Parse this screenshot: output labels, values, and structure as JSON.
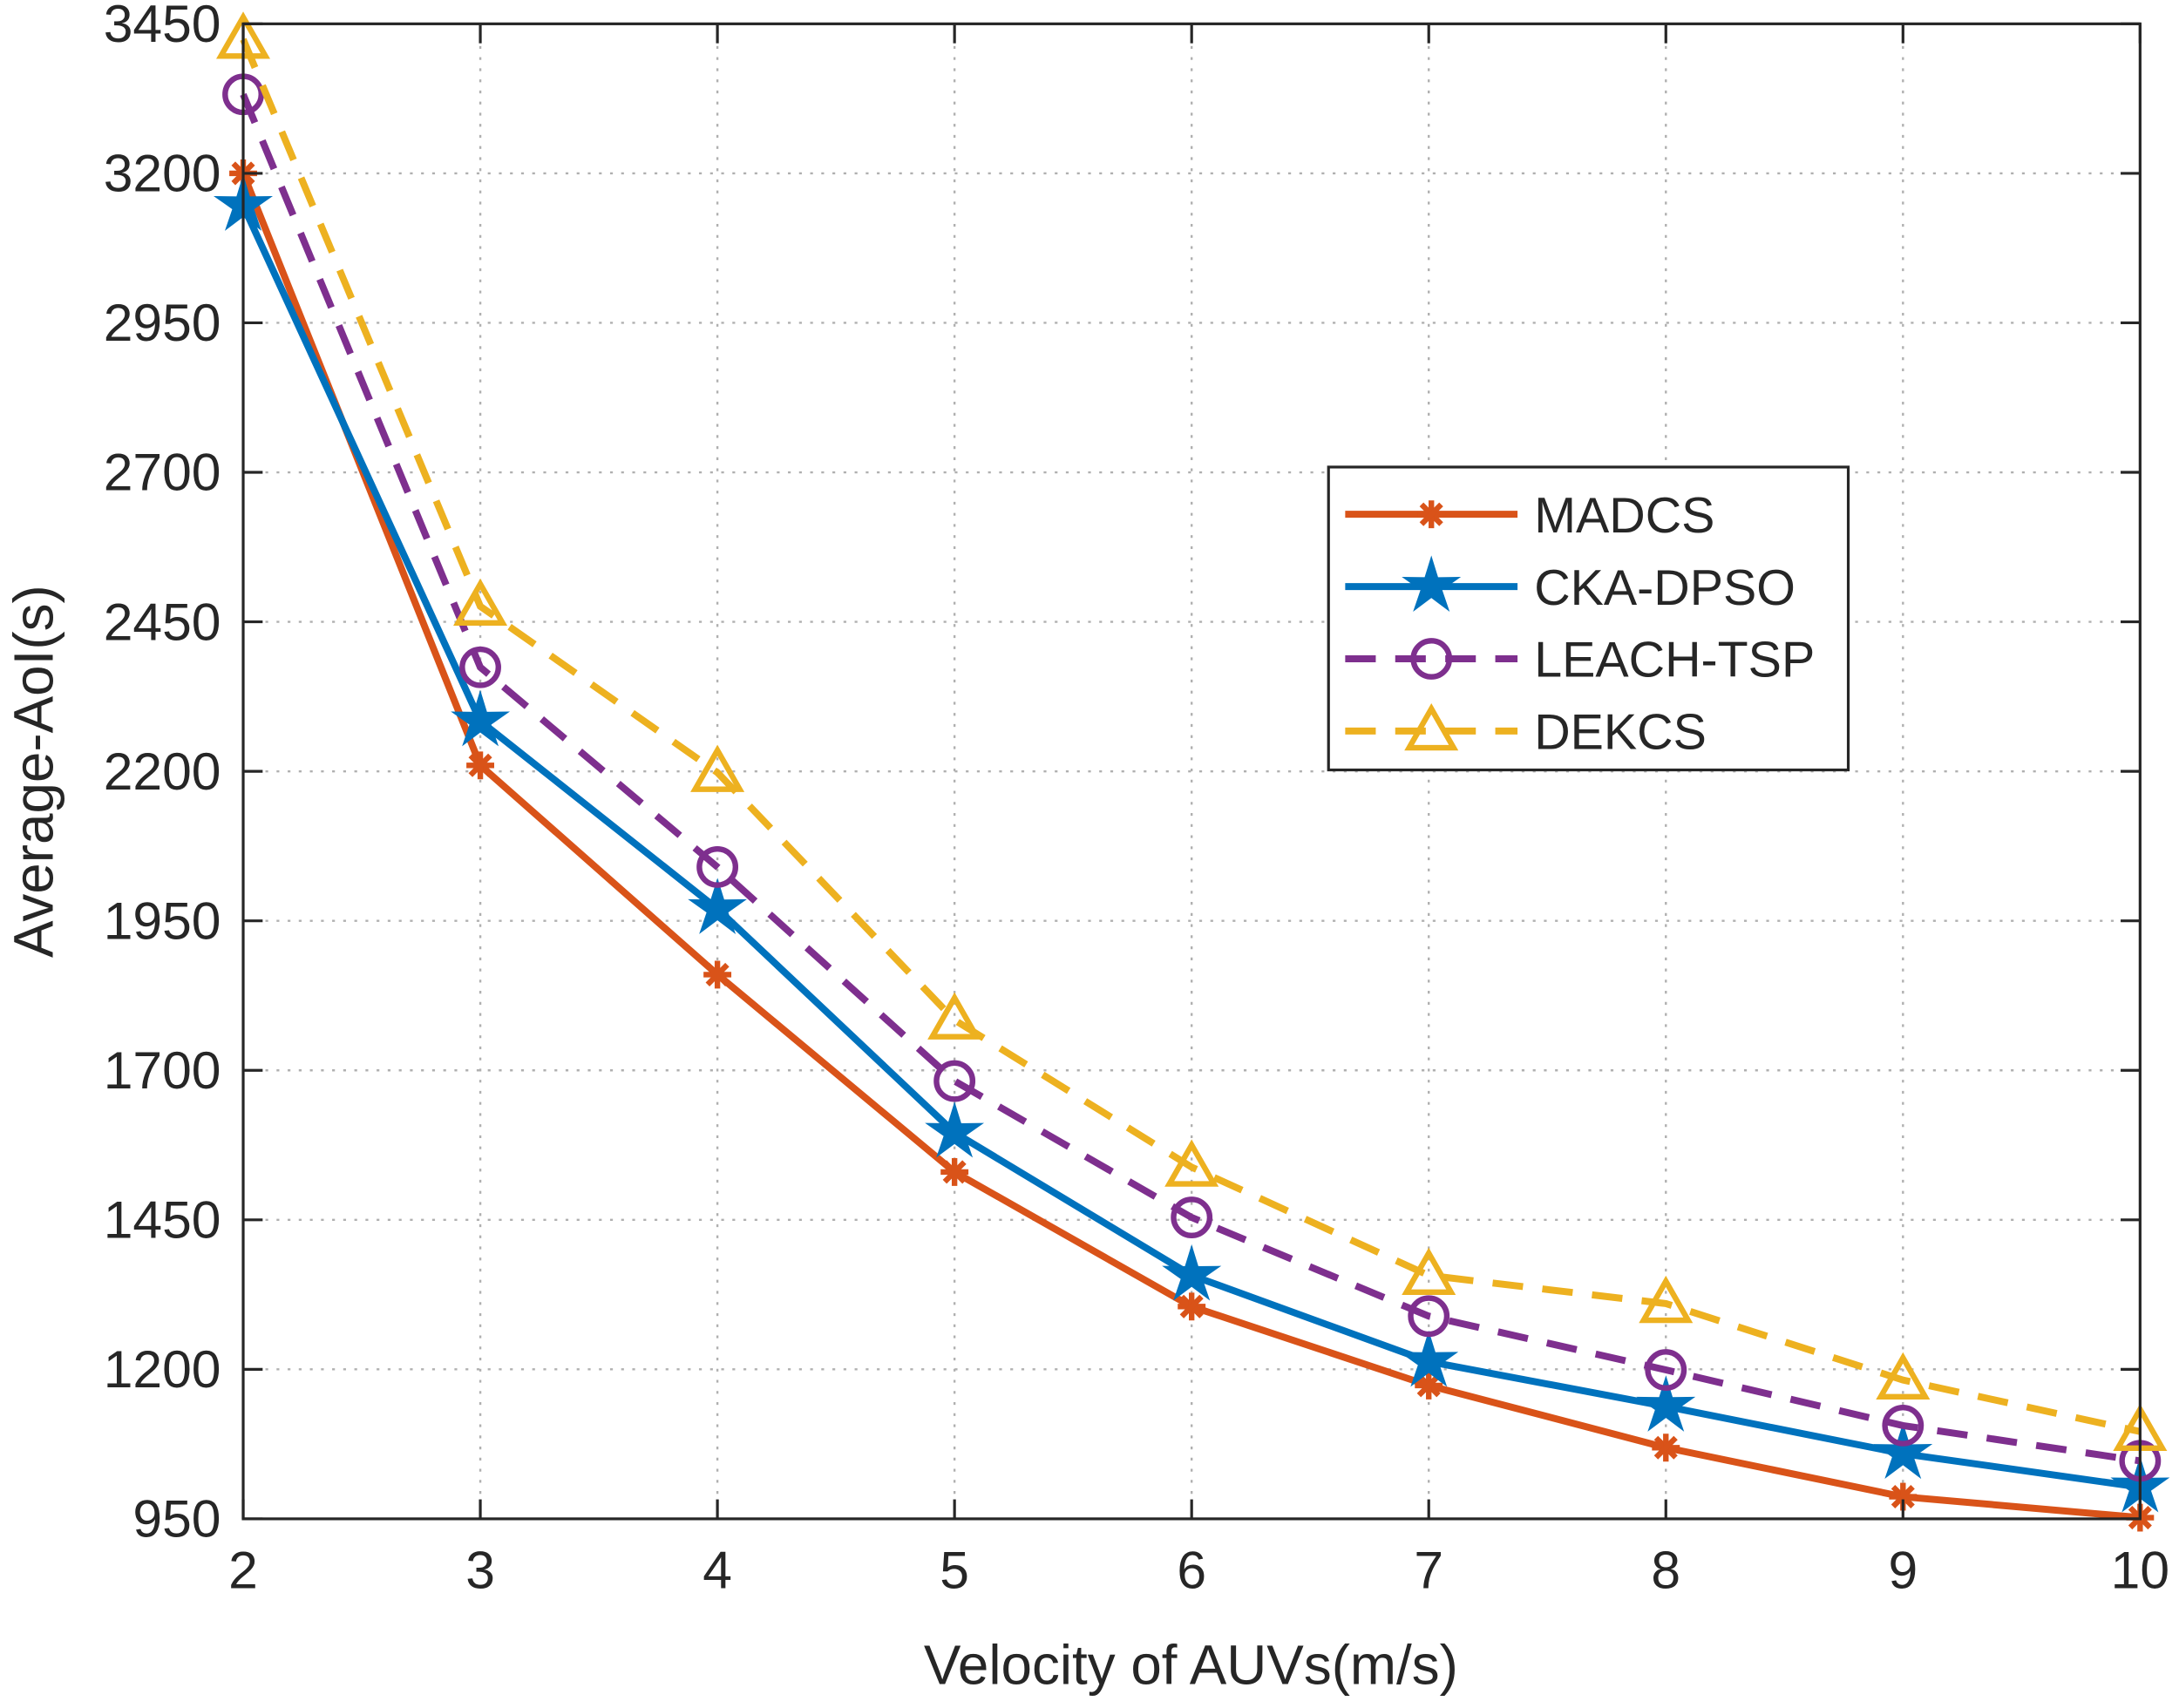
{
  "chart_data": {
    "type": "line",
    "title": "",
    "xlabel": "Velocity of AUVs(m/s)",
    "ylabel": "Average-AoI(s)",
    "xlim": [
      2,
      10
    ],
    "ylim": [
      950,
      3450
    ],
    "x": [
      2,
      3,
      4,
      5,
      6,
      7,
      8,
      9,
      10
    ],
    "xticks": [
      "2",
      "3",
      "4",
      "5",
      "6",
      "7",
      "8",
      "9",
      "10"
    ],
    "yticks": [
      "950",
      "1200",
      "1450",
      "1700",
      "1950",
      "2200",
      "2450",
      "2700",
      "2950",
      "3200",
      "3450"
    ],
    "grid": true,
    "legend_position": "center-right",
    "series": [
      {
        "name": "MADCS",
        "color": "#D95319",
        "dash": "solid",
        "marker": "asterisk",
        "values": [
          3200,
          2210,
          1860,
          1530,
          1305,
          1173,
          1069,
          987,
          952
        ]
      },
      {
        "name": "CKA-DPSO",
        "color": "#0072BD",
        "dash": "solid",
        "marker": "star",
        "values": [
          3146,
          2284,
          1970,
          1596,
          1357,
          1213,
          1138,
          1059,
          1003
        ]
      },
      {
        "name": "LEACH-TSP",
        "color": "#7E2F8E",
        "dash": "dashed",
        "marker": "circle",
        "values": [
          3332,
          2374,
          2040,
          1682,
          1454,
          1289,
          1199,
          1106,
          1047
        ]
      },
      {
        "name": "DEKCS",
        "color": "#EDB120",
        "dash": "dashed",
        "marker": "triangle",
        "values": [
          3424,
          2476,
          2198,
          1784,
          1538,
          1357,
          1310,
          1182,
          1096
        ]
      }
    ]
  }
}
